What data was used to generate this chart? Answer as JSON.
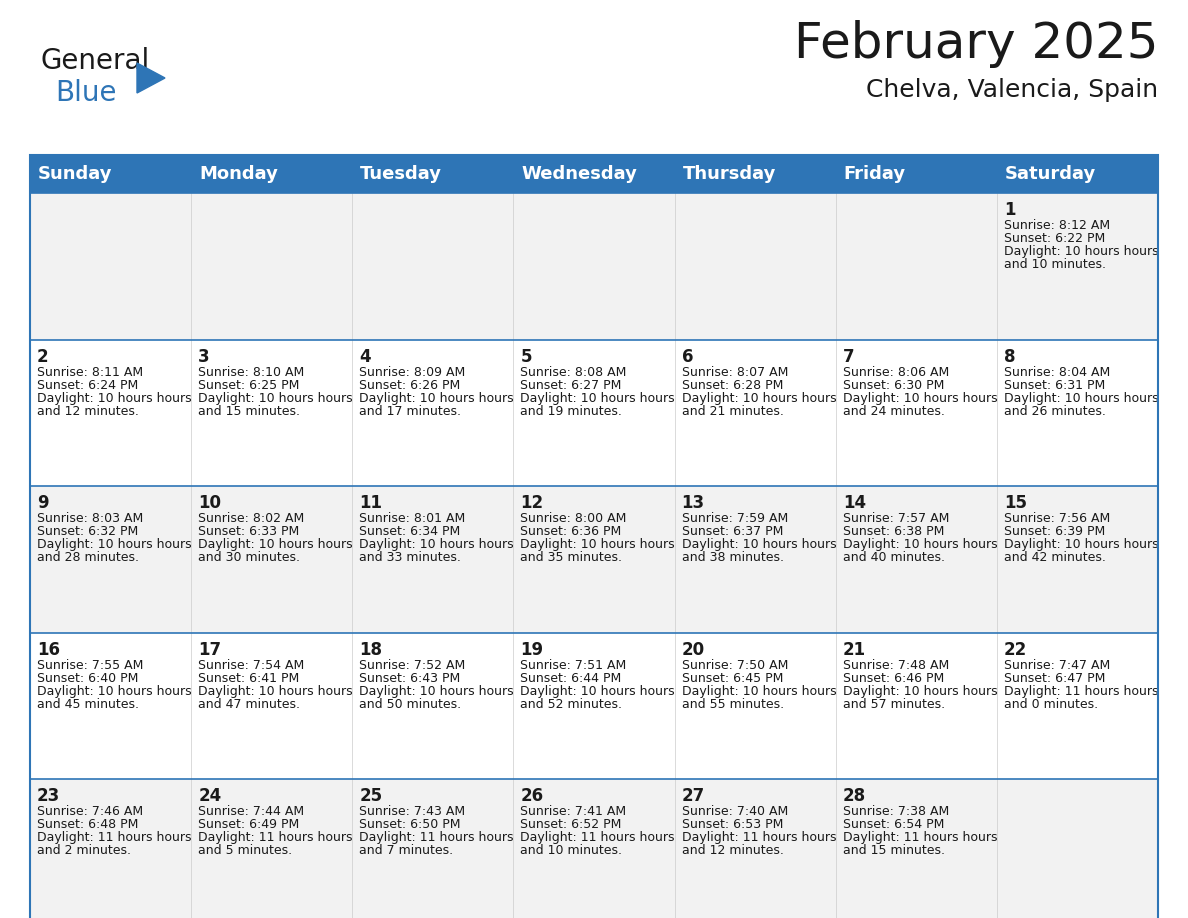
{
  "title": "February 2025",
  "subtitle": "Chelva, Valencia, Spain",
  "header_bg": "#2E75B6",
  "header_text_color": "#FFFFFF",
  "cell_bg_odd": "#F2F2F2",
  "cell_bg_even": "#FFFFFF",
  "border_color": "#2E75B6",
  "day_headers": [
    "Sunday",
    "Monday",
    "Tuesday",
    "Wednesday",
    "Thursday",
    "Friday",
    "Saturday"
  ],
  "days": [
    {
      "day": 1,
      "row": 0,
      "col": 6,
      "sunrise": "8:12 AM",
      "sunset": "6:22 PM",
      "daylight": "10 hours and 10 minutes."
    },
    {
      "day": 2,
      "row": 1,
      "col": 0,
      "sunrise": "8:11 AM",
      "sunset": "6:24 PM",
      "daylight": "10 hours and 12 minutes."
    },
    {
      "day": 3,
      "row": 1,
      "col": 1,
      "sunrise": "8:10 AM",
      "sunset": "6:25 PM",
      "daylight": "10 hours and 15 minutes."
    },
    {
      "day": 4,
      "row": 1,
      "col": 2,
      "sunrise": "8:09 AM",
      "sunset": "6:26 PM",
      "daylight": "10 hours and 17 minutes."
    },
    {
      "day": 5,
      "row": 1,
      "col": 3,
      "sunrise": "8:08 AM",
      "sunset": "6:27 PM",
      "daylight": "10 hours and 19 minutes."
    },
    {
      "day": 6,
      "row": 1,
      "col": 4,
      "sunrise": "8:07 AM",
      "sunset": "6:28 PM",
      "daylight": "10 hours and 21 minutes."
    },
    {
      "day": 7,
      "row": 1,
      "col": 5,
      "sunrise": "8:06 AM",
      "sunset": "6:30 PM",
      "daylight": "10 hours and 24 minutes."
    },
    {
      "day": 8,
      "row": 1,
      "col": 6,
      "sunrise": "8:04 AM",
      "sunset": "6:31 PM",
      "daylight": "10 hours and 26 minutes."
    },
    {
      "day": 9,
      "row": 2,
      "col": 0,
      "sunrise": "8:03 AM",
      "sunset": "6:32 PM",
      "daylight": "10 hours and 28 minutes."
    },
    {
      "day": 10,
      "row": 2,
      "col": 1,
      "sunrise": "8:02 AM",
      "sunset": "6:33 PM",
      "daylight": "10 hours and 30 minutes."
    },
    {
      "day": 11,
      "row": 2,
      "col": 2,
      "sunrise": "8:01 AM",
      "sunset": "6:34 PM",
      "daylight": "10 hours and 33 minutes."
    },
    {
      "day": 12,
      "row": 2,
      "col": 3,
      "sunrise": "8:00 AM",
      "sunset": "6:36 PM",
      "daylight": "10 hours and 35 minutes."
    },
    {
      "day": 13,
      "row": 2,
      "col": 4,
      "sunrise": "7:59 AM",
      "sunset": "6:37 PM",
      "daylight": "10 hours and 38 minutes."
    },
    {
      "day": 14,
      "row": 2,
      "col": 5,
      "sunrise": "7:57 AM",
      "sunset": "6:38 PM",
      "daylight": "10 hours and 40 minutes."
    },
    {
      "day": 15,
      "row": 2,
      "col": 6,
      "sunrise": "7:56 AM",
      "sunset": "6:39 PM",
      "daylight": "10 hours and 42 minutes."
    },
    {
      "day": 16,
      "row": 3,
      "col": 0,
      "sunrise": "7:55 AM",
      "sunset": "6:40 PM",
      "daylight": "10 hours and 45 minutes."
    },
    {
      "day": 17,
      "row": 3,
      "col": 1,
      "sunrise": "7:54 AM",
      "sunset": "6:41 PM",
      "daylight": "10 hours and 47 minutes."
    },
    {
      "day": 18,
      "row": 3,
      "col": 2,
      "sunrise": "7:52 AM",
      "sunset": "6:43 PM",
      "daylight": "10 hours and 50 minutes."
    },
    {
      "day": 19,
      "row": 3,
      "col": 3,
      "sunrise": "7:51 AM",
      "sunset": "6:44 PM",
      "daylight": "10 hours and 52 minutes."
    },
    {
      "day": 20,
      "row": 3,
      "col": 4,
      "sunrise": "7:50 AM",
      "sunset": "6:45 PM",
      "daylight": "10 hours and 55 minutes."
    },
    {
      "day": 21,
      "row": 3,
      "col": 5,
      "sunrise": "7:48 AM",
      "sunset": "6:46 PM",
      "daylight": "10 hours and 57 minutes."
    },
    {
      "day": 22,
      "row": 3,
      "col": 6,
      "sunrise": "7:47 AM",
      "sunset": "6:47 PM",
      "daylight": "11 hours and 0 minutes."
    },
    {
      "day": 23,
      "row": 4,
      "col": 0,
      "sunrise": "7:46 AM",
      "sunset": "6:48 PM",
      "daylight": "11 hours and 2 minutes."
    },
    {
      "day": 24,
      "row": 4,
      "col": 1,
      "sunrise": "7:44 AM",
      "sunset": "6:49 PM",
      "daylight": "11 hours and 5 minutes."
    },
    {
      "day": 25,
      "row": 4,
      "col": 2,
      "sunrise": "7:43 AM",
      "sunset": "6:50 PM",
      "daylight": "11 hours and 7 minutes."
    },
    {
      "day": 26,
      "row": 4,
      "col": 3,
      "sunrise": "7:41 AM",
      "sunset": "6:52 PM",
      "daylight": "11 hours and 10 minutes."
    },
    {
      "day": 27,
      "row": 4,
      "col": 4,
      "sunrise": "7:40 AM",
      "sunset": "6:53 PM",
      "daylight": "11 hours and 12 minutes."
    },
    {
      "day": 28,
      "row": 4,
      "col": 5,
      "sunrise": "7:38 AM",
      "sunset": "6:54 PM",
      "daylight": "11 hours and 15 minutes."
    }
  ],
  "logo_general_color": "#1a1a1a",
  "logo_blue_color": "#2E75B6",
  "title_fontsize": 36,
  "subtitle_fontsize": 18,
  "header_fontsize": 13,
  "day_num_fontsize": 12,
  "cell_text_fontsize": 9
}
